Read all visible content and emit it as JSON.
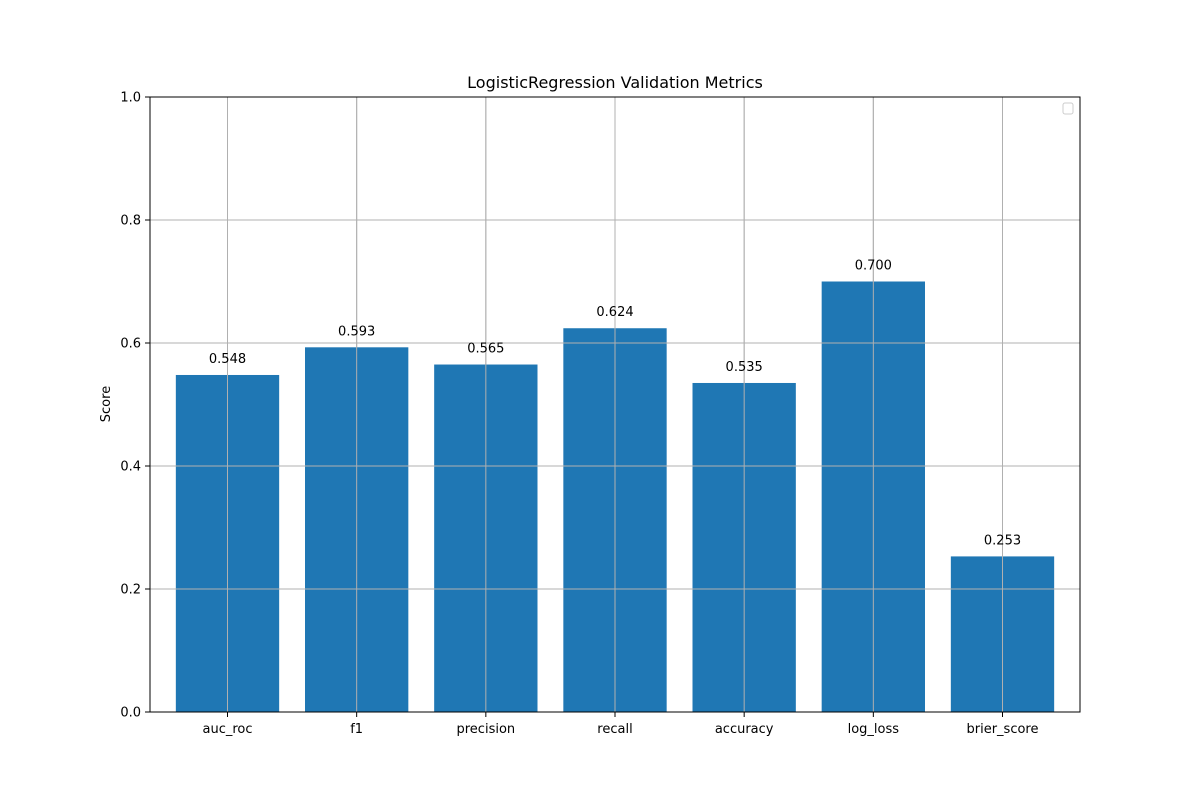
{
  "chart_data": {
    "type": "bar",
    "title": "LogisticRegression Validation Metrics",
    "xlabel": "",
    "ylabel": "Score",
    "categories": [
      "auc_roc",
      "f1",
      "precision",
      "recall",
      "accuracy",
      "log_loss",
      "brier_score"
    ],
    "values": [
      0.548,
      0.593,
      0.565,
      0.624,
      0.535,
      0.7,
      0.253
    ],
    "value_labels": [
      "0.548",
      "0.593",
      "0.565",
      "0.624",
      "0.535",
      "0.700",
      "0.253"
    ],
    "ylim": [
      0,
      1.0
    ],
    "yticks": [
      0.0,
      0.2,
      0.4,
      0.6,
      0.8,
      1.0
    ],
    "ytick_labels": [
      "0.0",
      "0.2",
      "0.4",
      "0.6",
      "0.8",
      "1.0"
    ],
    "grid": true,
    "legend": {
      "placement": "top-right",
      "entries": []
    },
    "colors": {
      "bar": "#1f77b4",
      "grid": "#b0b0b0",
      "axis": "#000000",
      "legend_border": "#cccccc"
    }
  }
}
